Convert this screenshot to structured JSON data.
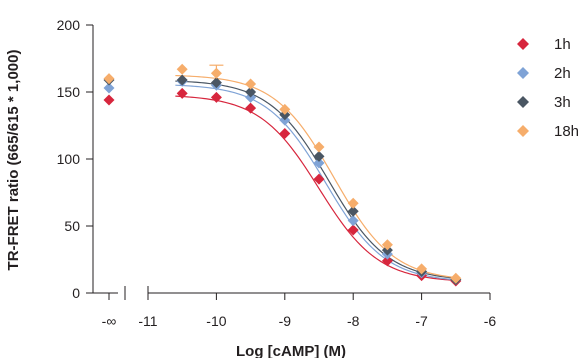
{
  "chart_data": {
    "type": "scatter",
    "xlabel": "Log [cAMP] (M)",
    "ylabel": "TR-FRET ratio (665/615 * 1,000)",
    "xlim": [
      -11,
      -6
    ],
    "ylim": [
      0,
      200
    ],
    "y_ticks": [
      0,
      50,
      100,
      150,
      200
    ],
    "y_tick_labels": [
      "0",
      "50",
      "100",
      "150",
      "200"
    ],
    "x_ticks": [
      -11,
      -10,
      -9,
      -8,
      -7,
      -6
    ],
    "x_tick_labels": [
      "-11",
      "-10",
      "-9",
      "-8",
      "-7",
      "-6"
    ],
    "x_break_label": "-∞",
    "legend_position": "right",
    "x": [
      -10.5,
      -10.0,
      -9.5,
      -9.0,
      -8.5,
      -8.0,
      -7.5,
      -7.0,
      -6.5
    ],
    "series": [
      {
        "name": "1h",
        "color": "#d7263d",
        "zero": 144,
        "values": [
          149,
          146,
          138,
          119,
          85,
          47,
          24,
          13,
          9
        ],
        "fit": {
          "top": 148,
          "bottom": 8,
          "logec50": -8.5,
          "hill": 1
        }
      },
      {
        "name": "2h",
        "color": "#7fa3d6",
        "zero": 153,
        "values": [
          158,
          155,
          146,
          129,
          97,
          54,
          29,
          15,
          10
        ],
        "fit": {
          "top": 156,
          "bottom": 8,
          "logec50": -8.4,
          "hill": 1
        }
      },
      {
        "name": "3h",
        "color": "#4a5663",
        "zero": 159,
        "values": [
          159,
          157,
          150,
          133,
          102,
          61,
          32,
          16,
          10
        ],
        "fit": {
          "top": 159,
          "bottom": 9,
          "logec50": -8.36,
          "hill": 1
        }
      },
      {
        "name": "18h",
        "color": "#f6ad6b",
        "zero": 160,
        "values": [
          167,
          164,
          156,
          137,
          109,
          67,
          36,
          18,
          11
        ],
        "fit": {
          "top": 163,
          "bottom": 9,
          "logec50": -8.28,
          "hill": 1
        }
      }
    ],
    "error_bars": [
      {
        "series": "18h",
        "x": -10.0,
        "y": 164,
        "upper": 170
      }
    ]
  }
}
